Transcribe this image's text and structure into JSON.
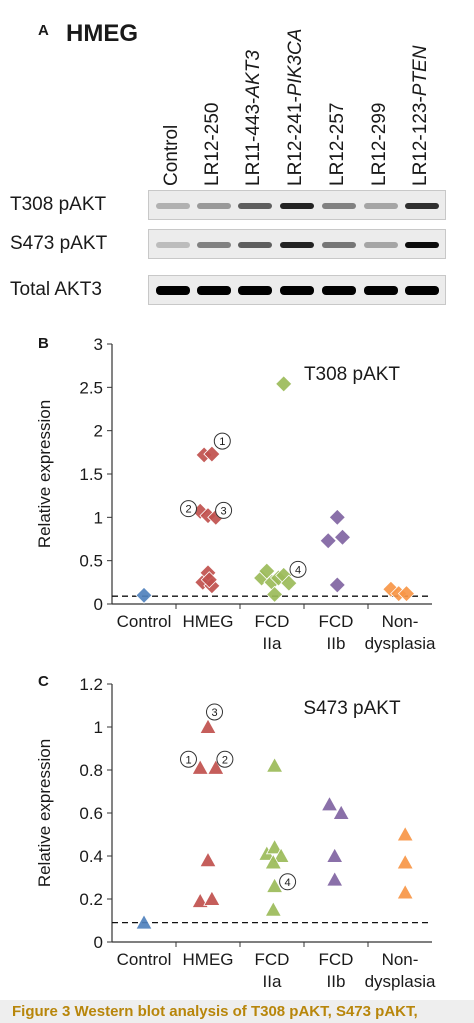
{
  "panelA": {
    "letter": "A",
    "title": "HMEG",
    "lanes": [
      {
        "prefix": "Control",
        "gene": ""
      },
      {
        "prefix": "LR12-250",
        "gene": ""
      },
      {
        "prefix": "LR11-443-",
        "gene": "AKT3"
      },
      {
        "prefix": "LR12-241-",
        "gene": "PIK3CA"
      },
      {
        "prefix": "LR12-257",
        "gene": ""
      },
      {
        "prefix": "LR12-299",
        "gene": ""
      },
      {
        "prefix": "LR12-123-",
        "gene": "PTEN"
      }
    ],
    "rows": [
      {
        "label": "T308 pAKT",
        "intensities": [
          0.25,
          0.35,
          0.6,
          0.85,
          0.45,
          0.3,
          0.8
        ]
      },
      {
        "label": "S473 pAKT",
        "intensities": [
          0.2,
          0.45,
          0.6,
          0.85,
          0.5,
          0.3,
          0.95
        ]
      },
      {
        "label": "Total AKT3",
        "intensities": [
          1,
          1,
          1,
          1,
          1,
          1,
          1
        ]
      }
    ]
  },
  "panelB": {
    "letter": "B",
    "chart_data": {
      "type": "scatter",
      "title": "T308 pAKT",
      "ylabel": "Relative expression",
      "ylim": [
        0,
        3
      ],
      "yticks": [
        "0",
        "0.5",
        "1",
        "1.5",
        "2",
        "2.5",
        "3"
      ],
      "marker": "diamond",
      "groups": [
        {
          "line1": "Control",
          "line2": "",
          "color": "#4f81bd",
          "points": [
            [
              0,
              0.1
            ]
          ]
        },
        {
          "line1": "HMEG",
          "line2": "",
          "color": "#c0504d",
          "points": [
            [
              -0.15,
              1.72
            ],
            [
              0.15,
              1.73
            ],
            [
              -0.3,
              1.07
            ],
            [
              0,
              1.02
            ],
            [
              0.3,
              1.0
            ],
            [
              -0.2,
              0.25
            ],
            [
              0,
              0.36
            ],
            [
              0.15,
              0.21
            ],
            [
              0.05,
              0.28
            ]
          ]
        },
        {
          "line1": "FCD",
          "line2": "IIa",
          "color": "#9bbb59",
          "points": [
            [
              0.45,
              2.54
            ],
            [
              -0.4,
              0.3
            ],
            [
              -0.2,
              0.38
            ],
            [
              0,
              0.25
            ],
            [
              0.1,
              0.11
            ],
            [
              0.25,
              0.3
            ],
            [
              0.45,
              0.33
            ],
            [
              0.65,
              0.24
            ]
          ]
        },
        {
          "line1": "FCD",
          "line2": "IIb",
          "color": "#8064a2",
          "points": [
            [
              0.05,
              1.0
            ],
            [
              0.25,
              0.77
            ],
            [
              -0.3,
              0.73
            ],
            [
              0.05,
              0.22
            ]
          ]
        },
        {
          "line1": "Non-",
          "line2": "dysplasia",
          "color": "#f79646",
          "points": [
            [
              -0.35,
              0.17
            ],
            [
              -0.05,
              0.12
            ],
            [
              0.25,
              0.12
            ]
          ]
        }
      ],
      "reference_line": 0.09,
      "annotations": [
        {
          "label": "1",
          "group": 1,
          "x": 0.55,
          "y": 1.88
        },
        {
          "label": "2",
          "group": 1,
          "x": -0.75,
          "y": 1.1
        },
        {
          "label": "3",
          "group": 1,
          "x": 0.6,
          "y": 1.08
        },
        {
          "label": "4",
          "group": 2,
          "x": 1.0,
          "y": 0.4
        }
      ]
    }
  },
  "panelC": {
    "letter": "C",
    "chart_data": {
      "type": "scatter",
      "title": "S473 pAKT",
      "ylabel": "Relative expression",
      "ylim": [
        0,
        1.2
      ],
      "yticks": [
        "0",
        "0.2",
        "0.4",
        "0.6",
        "0.8",
        "1",
        "1.2"
      ],
      "marker": "triangle",
      "groups": [
        {
          "line1": "Control",
          "line2": "",
          "color": "#4f81bd",
          "points": [
            [
              0,
              0.09
            ]
          ]
        },
        {
          "line1": "HMEG",
          "line2": "",
          "color": "#c0504d",
          "points": [
            [
              0,
              1.0
            ],
            [
              -0.3,
              0.81
            ],
            [
              0.3,
              0.81
            ],
            [
              0,
              0.38
            ],
            [
              -0.3,
              0.19
            ],
            [
              0.15,
              0.2
            ]
          ]
        },
        {
          "line1": "FCD",
          "line2": "IIa",
          "color": "#9bbb59",
          "points": [
            [
              0.1,
              0.82
            ],
            [
              -0.2,
              0.41
            ],
            [
              0.1,
              0.44
            ],
            [
              0.35,
              0.4
            ],
            [
              0.05,
              0.37
            ],
            [
              0.1,
              0.26
            ],
            [
              0.05,
              0.15
            ]
          ]
        },
        {
          "line1": "FCD",
          "line2": "IIb",
          "color": "#8064a2",
          "points": [
            [
              -0.25,
              0.64
            ],
            [
              0.2,
              0.6
            ],
            [
              -0.05,
              0.4
            ],
            [
              -0.05,
              0.29
            ]
          ]
        },
        {
          "line1": "Non-",
          "line2": "dysplasia",
          "color": "#f79646",
          "points": [
            [
              0.2,
              0.5
            ],
            [
              0.2,
              0.37
            ],
            [
              0.2,
              0.23
            ]
          ]
        }
      ],
      "reference_line": 0.09,
      "annotations": [
        {
          "label": "3",
          "group": 1,
          "x": 0.25,
          "y": 1.07
        },
        {
          "label": "1",
          "group": 1,
          "x": -0.75,
          "y": 0.85
        },
        {
          "label": "2",
          "group": 1,
          "x": 0.65,
          "y": 0.85
        },
        {
          "label": "4",
          "group": 2,
          "x": 0.6,
          "y": 0.28
        }
      ]
    }
  },
  "caption": "Figure 3  Western blot analysis of T308 pAKT, S473 pAKT,"
}
